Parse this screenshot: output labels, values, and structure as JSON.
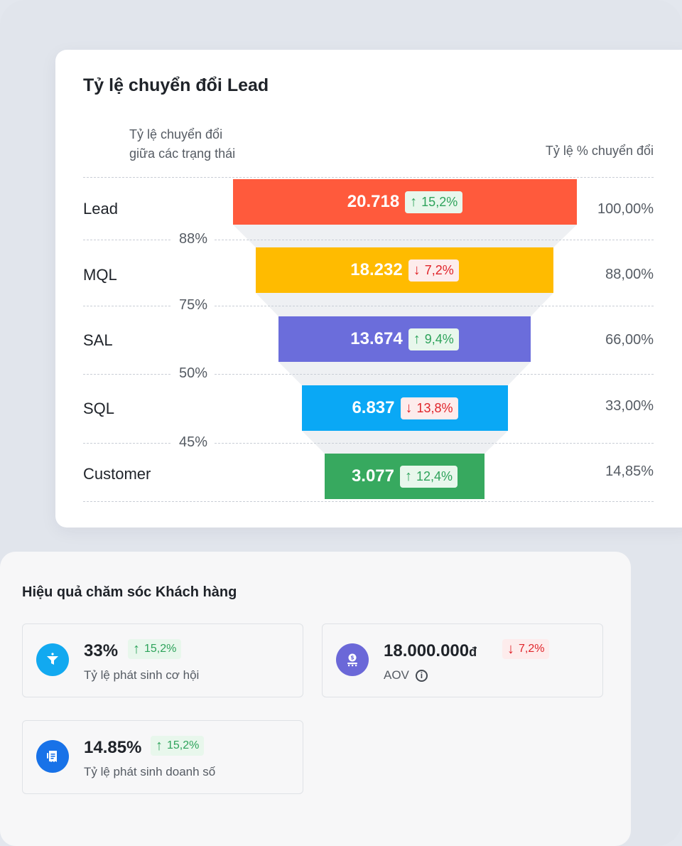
{
  "funnel": {
    "title": "Tỷ lệ chuyển đổi Lead",
    "left_header": [
      "Tỷ lệ chuyển đổi",
      "giữa các trạng thái"
    ],
    "right_header": "Tỷ lệ % chuyển đổi",
    "stages": [
      {
        "label": "Lead",
        "value": "20.718",
        "change": "15,2%",
        "direction": "up",
        "pct": "100,00%",
        "color": "#ff5a3c"
      },
      {
        "label": "MQL",
        "value": "18.232",
        "change": "7,2%",
        "direction": "down",
        "pct": "88,00%",
        "color": "#ffbb00"
      },
      {
        "label": "SAL",
        "value": "13.674",
        "change": "9,4%",
        "direction": "up",
        "pct": "66,00%",
        "color": "#6b6ddb"
      },
      {
        "label": "SQL",
        "value": "6.837",
        "change": "13,8%",
        "direction": "down",
        "pct": "33,00%",
        "color": "#0aa8f5"
      },
      {
        "label": "Customer",
        "value": "3.077",
        "change": "12,4%",
        "direction": "up",
        "pct": "14,85%",
        "color": "#37a95f"
      }
    ],
    "between_rates": [
      "88%",
      "75%",
      "50%",
      "45%"
    ]
  },
  "care": {
    "title": "Hiệu quả chăm sóc Khách hàng",
    "kpis": [
      {
        "value": "33%",
        "unit": "",
        "change": "15,2%",
        "direction": "up",
        "label": "Tỷ lệ phát sinh cơ hội",
        "icon": "funnel-icon",
        "icon_color": "#12a9f0",
        "info": false
      },
      {
        "value": "18.000.000",
        "unit": "đ",
        "change": "7,2%",
        "direction": "down",
        "label": "AOV",
        "icon": "money-icon",
        "icon_color": "#6b68d8",
        "info": true
      },
      {
        "value": "14.85%",
        "unit": "",
        "change": "15,2%",
        "direction": "up",
        "label": "Tỷ lệ phát sinh doanh số",
        "icon": "receipt-icon",
        "icon_color": "#1872e8",
        "info": false
      }
    ]
  }
}
